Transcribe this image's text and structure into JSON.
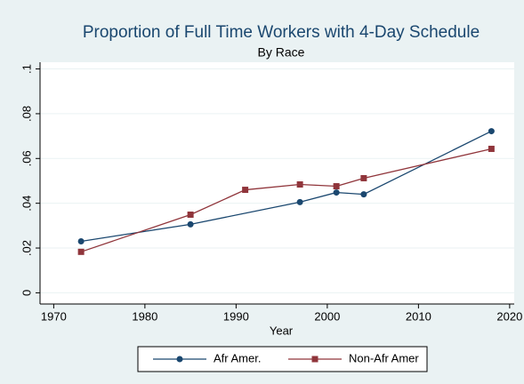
{
  "chart_data": {
    "type": "line",
    "title": "Proportion of Full Time Workers with 4-Day Schedule",
    "subtitle": "By Race",
    "x_label": "Year",
    "series": [
      {
        "name": "Afr Amer.",
        "color": "#1a476f",
        "marker": "circle",
        "x": [
          1973,
          1985,
          1997,
          2001,
          2004,
          2018
        ],
        "values": [
          0.023,
          0.0306,
          0.0405,
          0.0448,
          0.044,
          0.0722
        ]
      },
      {
        "name": "Non-Afr Amer",
        "color": "#90353b",
        "marker": "square",
        "x": [
          1973,
          1985,
          1991,
          1997,
          2001,
          2004,
          2018
        ],
        "values": [
          0.0183,
          0.0349,
          0.046,
          0.0484,
          0.0476,
          0.0512,
          0.0643
        ]
      }
    ],
    "xlim": [
      1968.5,
      2020.5
    ],
    "xticks": [
      1970,
      1980,
      1990,
      2000,
      2010,
      2020
    ],
    "ylim": [
      -0.005,
      0.103
    ],
    "yticks": [
      0,
      {
        "value": 0.02,
        "label": ".02"
      },
      {
        "value": 0.04,
        "label": ".04"
      },
      {
        "value": 0.06,
        "label": ".06"
      },
      {
        "value": 0.08,
        "label": ".08"
      },
      {
        "value": 0.1,
        "label": ".1"
      }
    ],
    "grid": true,
    "legend": "bottom"
  }
}
